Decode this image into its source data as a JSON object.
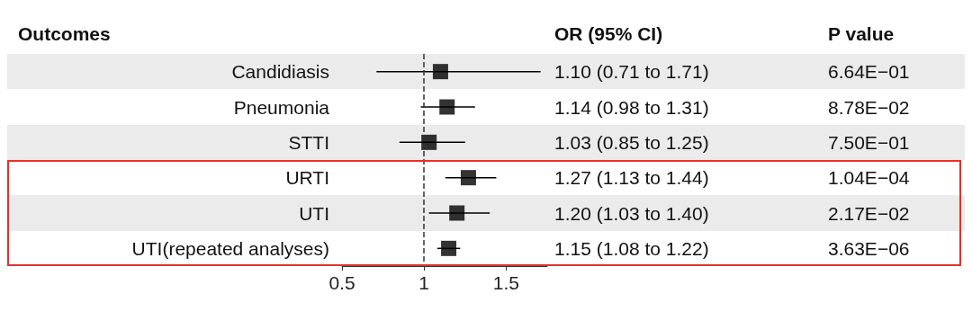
{
  "chart_data": {
    "type": "scatter",
    "orientation": "horizontal",
    "categories": [
      "Candidiasis",
      "Pneumonia",
      "STTI",
      "URTI",
      "UTI",
      "UTI(repeated analyses)"
    ],
    "series": [
      {
        "color": "#000000",
        "values": [
          1.1,
          1.14,
          1.03,
          1.27,
          1.2,
          1.15
        ],
        "errors": [
          [
            0.71,
            1.71
          ],
          [
            0.98,
            1.31
          ],
          [
            0.85,
            1.25
          ],
          [
            1.13,
            1.44
          ],
          [
            1.03,
            1.4
          ],
          [
            1.08,
            1.22
          ]
        ],
        "value_labels": [
          "1.10 (0.71 to 1.71)",
          "1.14 (0.98 to 1.31)",
          "1.03 (0.85 to 1.25)",
          "1.27 (1.13 to 1.44)",
          "1.20 (1.03 to 1.40)",
          "1.15 (1.08 to 1.22)"
        ]
      }
    ],
    "marker": "square",
    "xlim": [
      0.5,
      1.75
    ],
    "xticks": [
      0.5,
      1,
      1.5
    ],
    "ref_lines": [
      {
        "axis": "x",
        "value": 1,
        "line_style": "dashed"
      }
    ],
    "annotations": [
      "Outcomes",
      "OR (95% CI)",
      "P value",
      "6.64E−01",
      "8.78E−02",
      "7.50E−01",
      "1.04E−04",
      "2.17E−02",
      "3.63E−06"
    ]
  }
}
